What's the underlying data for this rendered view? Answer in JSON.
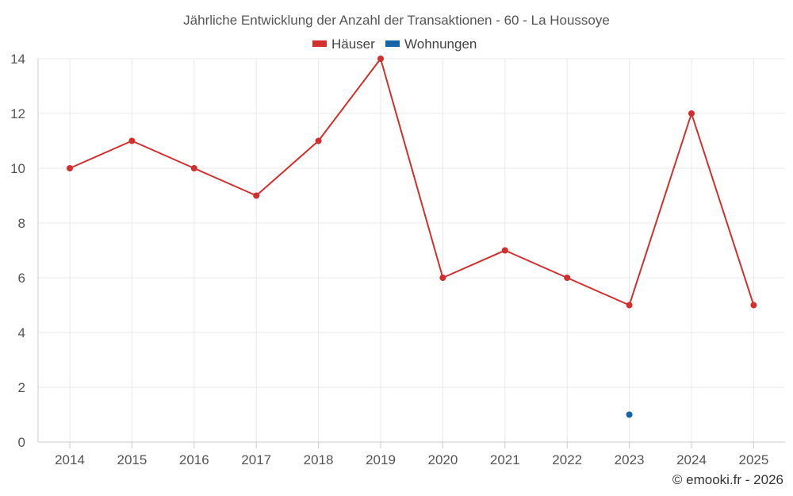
{
  "chart_data": {
    "type": "line",
    "title": "Jährliche Entwicklung der Anzahl der Transaktionen - 60 - La Houssoye",
    "categories": [
      "2014",
      "2015",
      "2016",
      "2017",
      "2018",
      "2019",
      "2020",
      "2021",
      "2022",
      "2023",
      "2024",
      "2025"
    ],
    "series": [
      {
        "name": "Häuser",
        "color": "#d32f2f",
        "values": [
          10,
          11,
          10,
          9,
          11,
          14,
          6,
          7,
          6,
          5,
          12,
          5
        ]
      },
      {
        "name": "Wohnungen",
        "color": "#1565a8",
        "values": [
          null,
          null,
          null,
          null,
          null,
          null,
          null,
          null,
          null,
          1,
          null,
          null
        ]
      }
    ],
    "ylim": [
      0,
      14
    ],
    "yticks": [
      0,
      2,
      4,
      6,
      8,
      10,
      12,
      14
    ],
    "grid": true,
    "legend": "top-center",
    "xlabel": "",
    "ylabel": ""
  },
  "footer": {
    "copyright": "© emooki.fr - 2026"
  }
}
